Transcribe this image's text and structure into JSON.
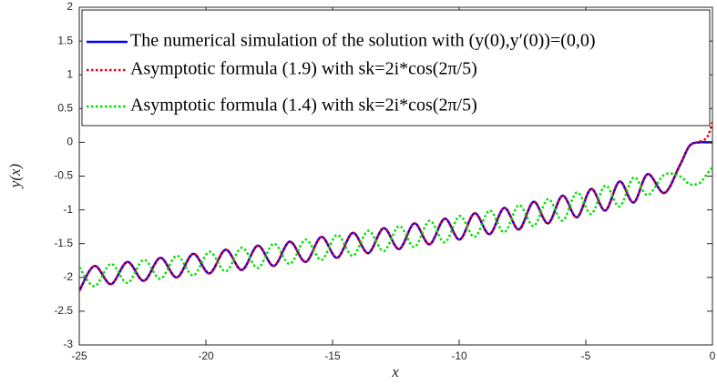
{
  "chart_data": {
    "type": "line",
    "xlabel": "x",
    "ylabel": "y(x)",
    "xlim": [
      -25,
      0
    ],
    "xticks": [
      -25,
      -20,
      -15,
      -10,
      -5,
      0
    ],
    "ylim": [
      -3,
      2
    ],
    "yticks": [
      -3,
      -2.5,
      -2,
      -1.5,
      -1,
      -0.5,
      0,
      0.5,
      1,
      1.5,
      2
    ],
    "legend": "top",
    "x": [
      -25,
      -24.4,
      -23.75,
      -23.1,
      -22.45,
      -21.8,
      -21.15,
      -20.5,
      -19.86,
      -19.22,
      -18.58,
      -17.95,
      -17.32,
      -16.69,
      -16.06,
      -15.44,
      -14.82,
      -14.2,
      -13.59,
      -12.98,
      -12.37,
      -11.77,
      -11.17,
      -10.57,
      -9.98,
      -9.39,
      -8.8,
      -8.22,
      -7.64,
      -7.06,
      -6.49,
      -5.92,
      -5.35,
      -4.79,
      -4.23,
      -3.67,
      -3.11,
      -2.56,
      -1.9,
      -1.3,
      -0.9,
      -0.5,
      -0.2,
      0
    ],
    "series": [
      {
        "name": "The numerical simulation of the solution with (y(0),y′(0))=(0,0)",
        "color": "#0000ff",
        "style": "solid",
        "values": [
          -2.2,
          -1.83,
          -2.1,
          -1.77,
          -2.05,
          -1.71,
          -2.0,
          -1.65,
          -1.94,
          -1.59,
          -1.89,
          -1.53,
          -1.83,
          -1.47,
          -1.77,
          -1.4,
          -1.71,
          -1.34,
          -1.64,
          -1.27,
          -1.58,
          -1.2,
          -1.51,
          -1.13,
          -1.44,
          -1.05,
          -1.36,
          -0.97,
          -1.29,
          -0.88,
          -1.2,
          -0.79,
          -1.11,
          -0.69,
          -1.01,
          -0.58,
          -0.89,
          -0.47,
          -0.75,
          -0.35,
          -0.05,
          0,
          0,
          0
        ]
      },
      {
        "name": "Asymptotic formula (1.9) with sk=2i*cos(2π/5)",
        "color": "#e8000b",
        "style": "dotted",
        "values": [
          -2.2,
          -1.83,
          -2.1,
          -1.77,
          -2.05,
          -1.71,
          -2.0,
          -1.65,
          -1.94,
          -1.59,
          -1.89,
          -1.53,
          -1.83,
          -1.47,
          -1.77,
          -1.4,
          -1.71,
          -1.34,
          -1.64,
          -1.27,
          -1.58,
          -1.2,
          -1.51,
          -1.13,
          -1.44,
          -1.05,
          -1.36,
          -0.97,
          -1.29,
          -0.88,
          -1.2,
          -0.79,
          -1.11,
          -0.69,
          -1.01,
          -0.58,
          -0.89,
          -0.47,
          -0.75,
          -0.35,
          -0.05,
          0.01,
          0.08,
          0.3
        ]
      },
      {
        "name": "Asymptotic formula (1.4) with sk=2i*cos(2π/5)",
        "color": "#00e000",
        "style": "dotted",
        "values": [
          -1.85,
          -2.13,
          -1.8,
          -2.08,
          -1.74,
          -2.02,
          -1.68,
          -1.97,
          -1.62,
          -1.91,
          -1.56,
          -1.86,
          -1.5,
          -1.8,
          -1.44,
          -1.74,
          -1.37,
          -1.68,
          -1.31,
          -1.61,
          -1.24,
          -1.55,
          -1.16,
          -1.48,
          -1.09,
          -1.4,
          -1.01,
          -1.33,
          -0.93,
          -1.24,
          -0.84,
          -1.16,
          -0.74,
          -1.06,
          -0.64,
          -0.95,
          -0.52,
          -0.78,
          -0.48,
          -0.5,
          -0.62,
          -0.6,
          -0.46,
          -0.37
        ]
      }
    ]
  }
}
